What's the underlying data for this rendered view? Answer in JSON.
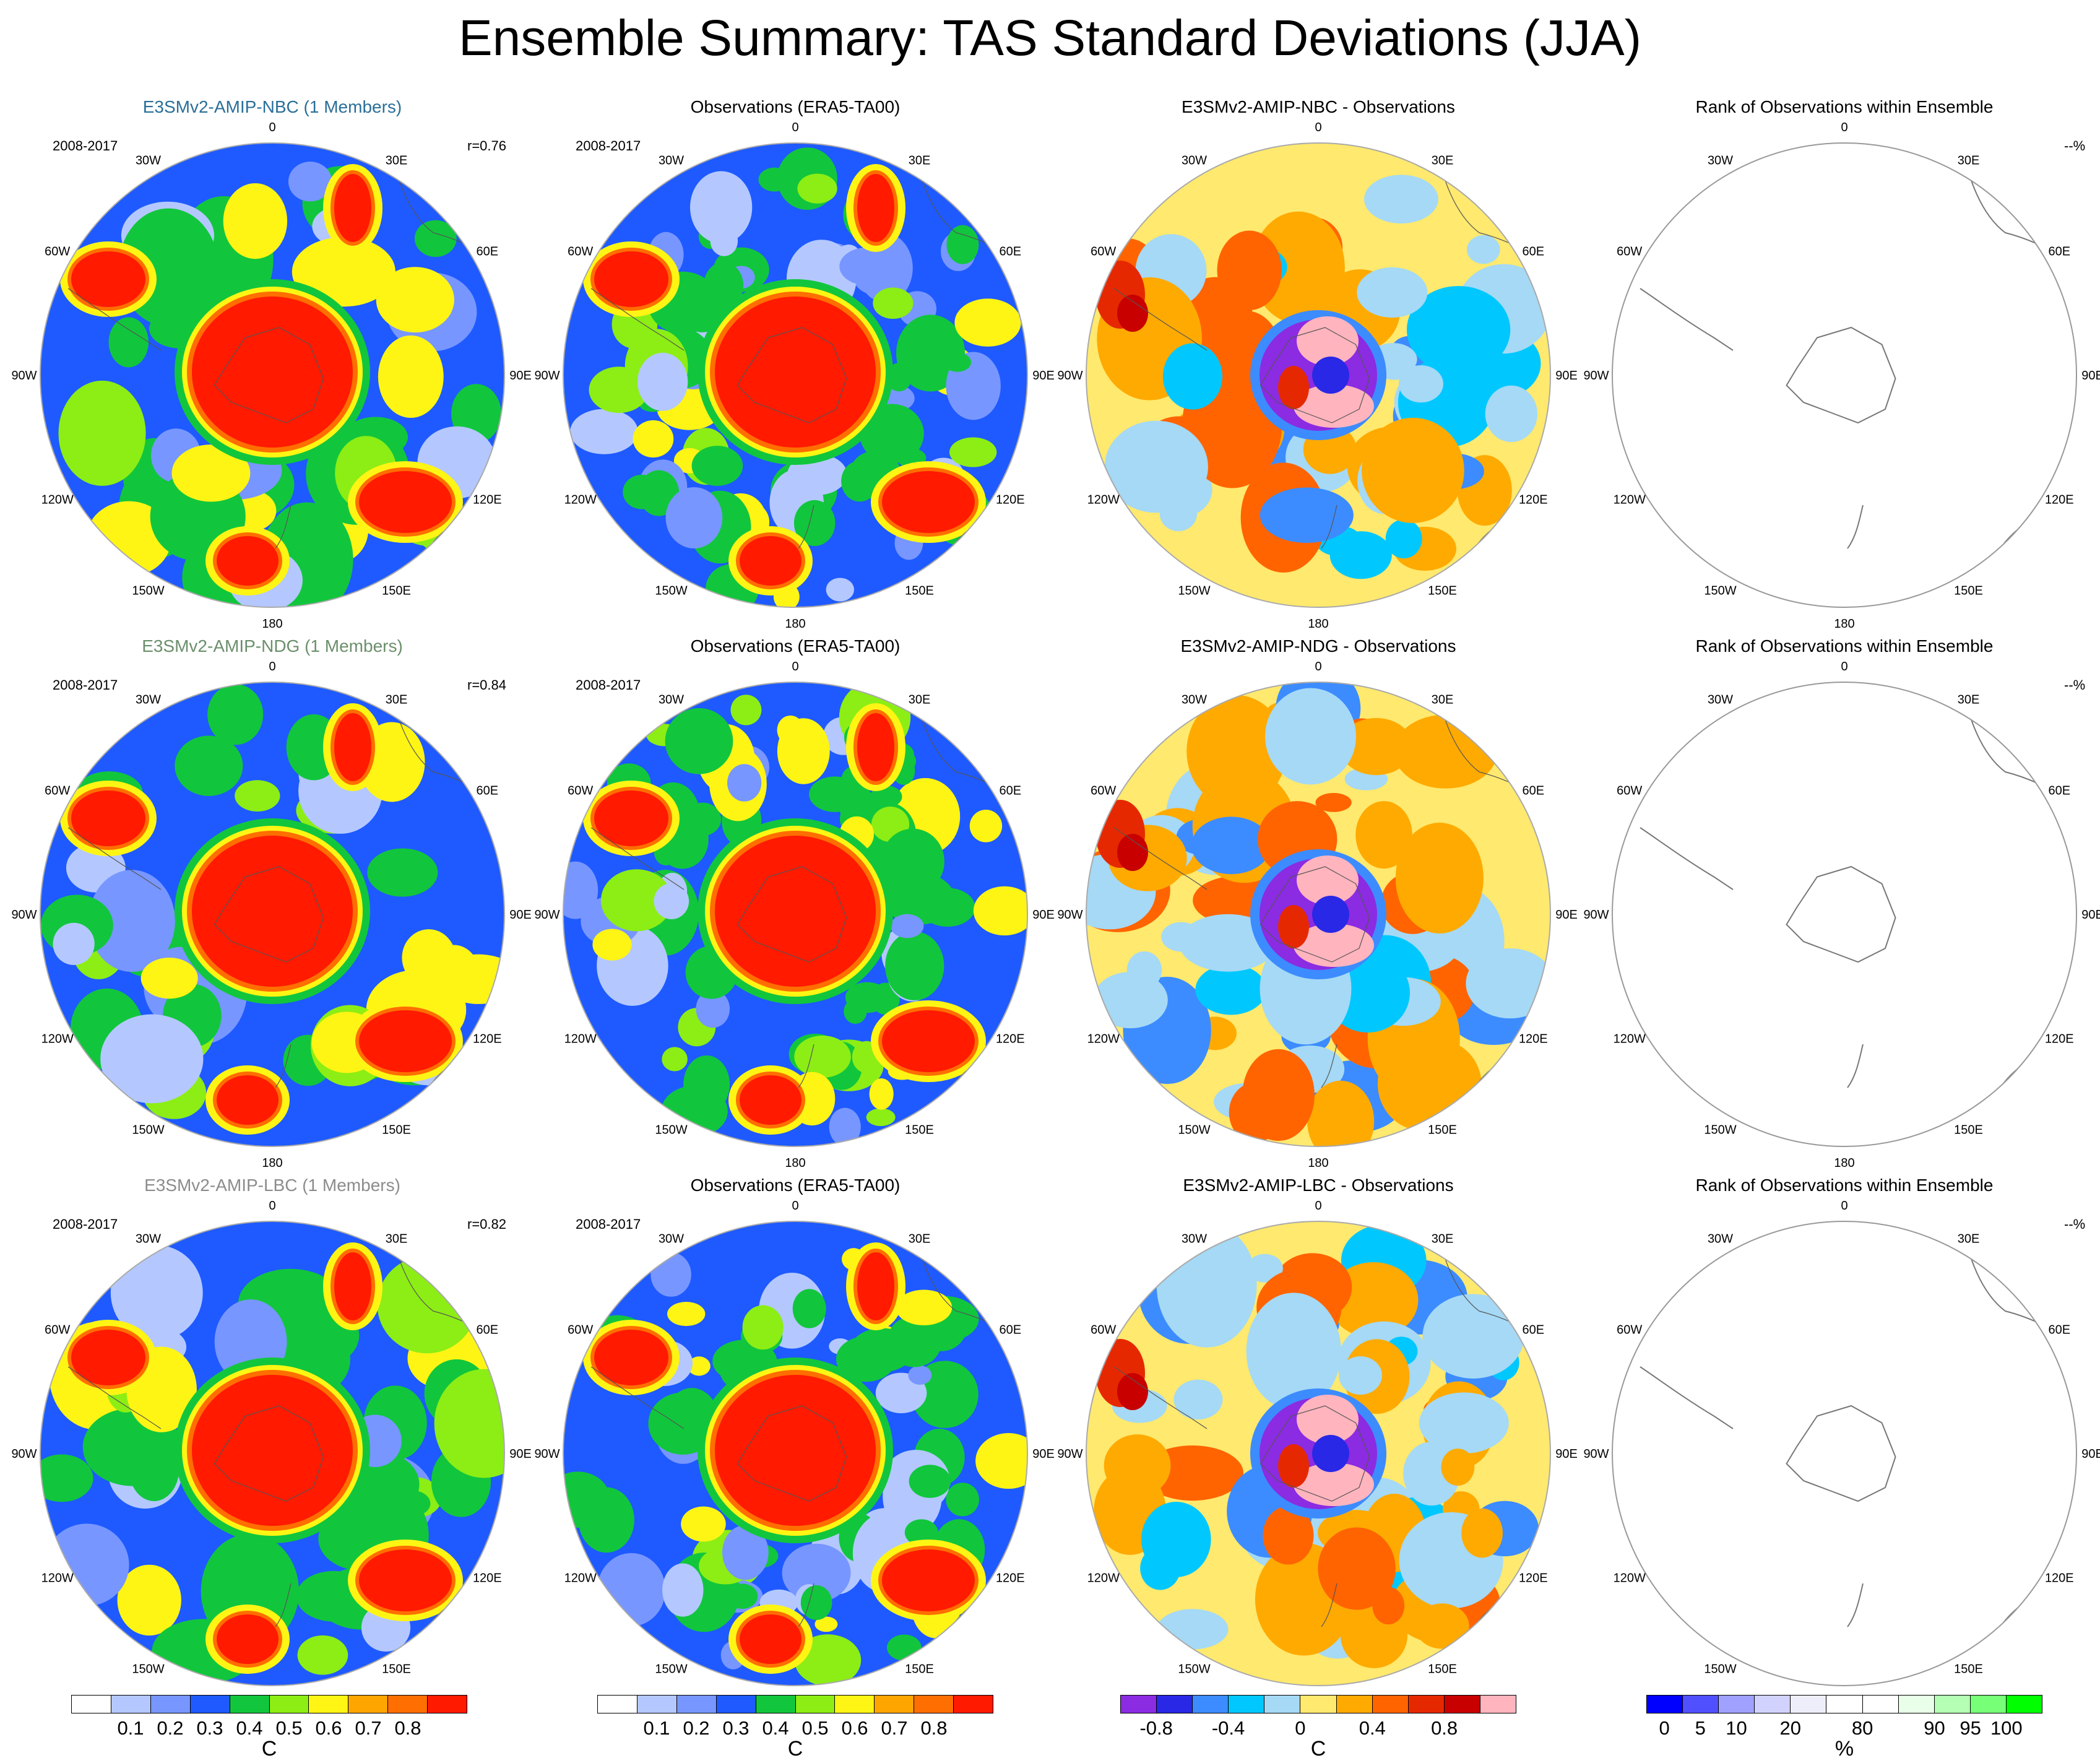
{
  "title": "Ensemble Summary: TAS Standard Deviations (JJA)",
  "period_label": "2008-2017",
  "lon_labels": [
    "0",
    "30E",
    "60E",
    "90E",
    "120E",
    "150E",
    "180",
    "150W",
    "120W",
    "90W",
    "60W",
    "30W"
  ],
  "rows": [
    {
      "model_title": "E3SMv2-AMIP-NBC (1 Members)",
      "model_title_color": "#2a6f98",
      "corr": "r=0.76",
      "obs_title": "Observations (ERA5-TA00)",
      "diff_title": "E3SMv2-AMIP-NBC - Observations",
      "rank_title": "Rank of Observations within Ensemble",
      "rank_pct": "--%"
    },
    {
      "model_title": "E3SMv2-AMIP-NDG (1 Members)",
      "model_title_color": "#6b8f6b",
      "corr": "r=0.84",
      "obs_title": "Observations (ERA5-TA00)",
      "diff_title": "E3SMv2-AMIP-NDG - Observations",
      "rank_title": "Rank of Observations within Ensemble",
      "rank_pct": "--%"
    },
    {
      "model_title": "E3SMv2-AMIP-LBC (1 Members)",
      "model_title_color": "#8c8c8c",
      "corr": "r=0.82",
      "obs_title": "Observations (ERA5-TA00)",
      "diff_title": "E3SMv2-AMIP-LBC - Observations",
      "rank_title": "Rank of Observations within Ensemble",
      "rank_pct": "--%"
    }
  ],
  "colorbars": {
    "stddev": {
      "colors": [
        "#ffffff",
        "#b4c8ff",
        "#7896ff",
        "#1e5aff",
        "#11c63c",
        "#8cee14",
        "#fff514",
        "#ffa500",
        "#ff6e00",
        "#ff1a00"
      ],
      "labels": [
        "0.1",
        "0.2",
        "0.3",
        "0.4",
        "0.5",
        "0.6",
        "0.7",
        "0.8"
      ],
      "unit": "C"
    },
    "diff": {
      "colors": [
        "#8b2be2",
        "#2828e6",
        "#3c8cff",
        "#00c8ff",
        "#a5d9f5",
        "#ffe96e",
        "#ffaa00",
        "#ff6400",
        "#e62800",
        "#c80000",
        "#ffb4be"
      ],
      "labels": [
        "-0.8",
        "-0.4",
        "0",
        "0.4",
        "0.8"
      ],
      "unit": "C"
    },
    "rank": {
      "colors": [
        "#0000ff",
        "#5050ff",
        "#a0a0ff",
        "#d2d2ff",
        "#eeeefa",
        "#ffffff",
        "#ffffff",
        "#eaffea",
        "#b4ffb4",
        "#78ff78",
        "#00ff00"
      ],
      "labels": [
        "0",
        "5",
        "10",
        "20",
        "80",
        "90",
        "95",
        "100"
      ],
      "unit": "%"
    }
  }
}
